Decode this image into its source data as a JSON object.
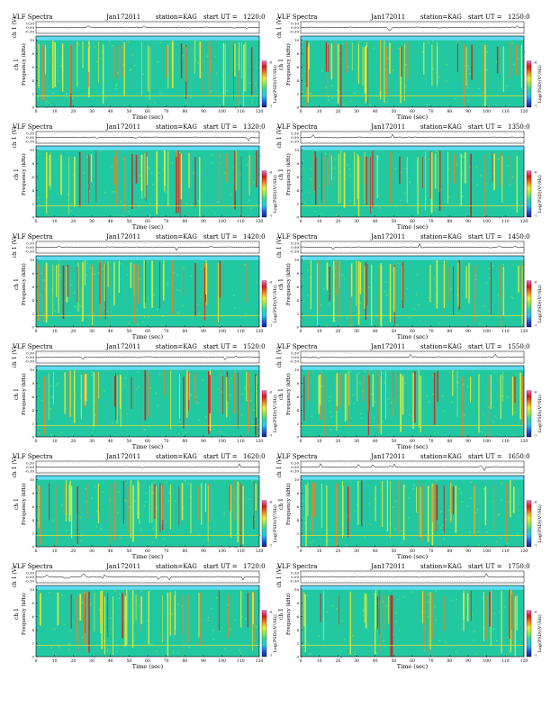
{
  "title_text": "VLF Spectra",
  "date": "Jan172011",
  "station": "station=KAG",
  "start_prefix": "start  UT =",
  "top_ylabel": "ch 1 (V)",
  "top_yticks": [
    "0.30",
    "0.00",
    "-0.30"
  ],
  "spec_ylabel_1": "ch 1",
  "spec_ylabel_2": "Frequency  (kHz)",
  "spec_yticks": [
    "10",
    "8",
    "6",
    "4",
    "2",
    "0"
  ],
  "xlabel": "Time  (sec)",
  "xticks": [
    "0",
    "10",
    "20",
    "30",
    "40",
    "50",
    "60",
    "70",
    "80",
    "90",
    "100",
    "110",
    "120"
  ],
  "colorbar_label": "Log(PSD)(V²/Hz)",
  "colorbar_ticks": [
    "-6",
    "-7"
  ],
  "colors": {
    "background": "#ffffff",
    "spectrogram_base": "#22c8a0",
    "cyan_band": "#5fdcf0",
    "colormap": [
      "#1a1a8c",
      "#1f5fe0",
      "#28c8f0",
      "#2fd4a0",
      "#8ce850",
      "#f0f030",
      "#f08020",
      "#d81818",
      "#ff6ad0"
    ]
  },
  "chart_data": [
    {
      "type": "heatmap",
      "start_time": "1220:0",
      "column": "left",
      "x_range": [
        0,
        120
      ],
      "y_range_khz": [
        0,
        10
      ],
      "top_trace_range_v": [
        -0.3,
        0.3
      ],
      "xlabel": "Time  (sec)",
      "ylabel": "Frequency  (kHz)"
    },
    {
      "type": "heatmap",
      "start_time": "1250:0",
      "column": "right",
      "x_range": [
        0,
        120
      ],
      "y_range_khz": [
        0,
        10
      ],
      "top_trace_range_v": [
        -0.3,
        0.3
      ],
      "xlabel": "Time  (sec)",
      "ylabel": "Frequency  (kHz)"
    },
    {
      "type": "heatmap",
      "start_time": "1320:0",
      "column": "left",
      "x_range": [
        0,
        120
      ],
      "y_range_khz": [
        0,
        10
      ],
      "top_trace_range_v": [
        -0.3,
        0.3
      ],
      "xlabel": "Time  (sec)",
      "ylabel": "Frequency  (kHz)"
    },
    {
      "type": "heatmap",
      "start_time": "1350:0",
      "column": "right",
      "x_range": [
        0,
        120
      ],
      "y_range_khz": [
        0,
        10
      ],
      "top_trace_range_v": [
        -0.3,
        0.3
      ],
      "xlabel": "Time  (sec)",
      "ylabel": "Frequency  (kHz)"
    },
    {
      "type": "heatmap",
      "start_time": "1420:0",
      "column": "left",
      "x_range": [
        0,
        120
      ],
      "y_range_khz": [
        0,
        10
      ],
      "top_trace_range_v": [
        -0.3,
        0.3
      ],
      "xlabel": "Time  (sec)",
      "ylabel": "Frequency  (kHz)"
    },
    {
      "type": "heatmap",
      "start_time": "1450:0",
      "column": "right",
      "x_range": [
        0,
        120
      ],
      "y_range_khz": [
        0,
        10
      ],
      "top_trace_range_v": [
        -0.3,
        0.3
      ],
      "xlabel": "Time  (sec)",
      "ylabel": "Frequency  (kHz)"
    },
    {
      "type": "heatmap",
      "start_time": "1520:0",
      "column": "left",
      "x_range": [
        0,
        120
      ],
      "y_range_khz": [
        0,
        10
      ],
      "top_trace_range_v": [
        -0.3,
        0.3
      ],
      "xlabel": "Time  (sec)",
      "ylabel": "Frequency  (kHz)"
    },
    {
      "type": "heatmap",
      "start_time": "1550:0",
      "column": "right",
      "x_range": [
        0,
        120
      ],
      "y_range_khz": [
        0,
        10
      ],
      "top_trace_range_v": [
        -0.3,
        0.3
      ],
      "xlabel": "Time  (sec)",
      "ylabel": "Frequency  (kHz)"
    },
    {
      "type": "heatmap",
      "start_time": "1620:0",
      "column": "left",
      "x_range": [
        0,
        120
      ],
      "y_range_khz": [
        0,
        10
      ],
      "top_trace_range_v": [
        -0.3,
        0.3
      ],
      "xlabel": "Time  (sec)",
      "ylabel": "Frequency  (kHz)"
    },
    {
      "type": "heatmap",
      "start_time": "1650:0",
      "column": "right",
      "x_range": [
        0,
        120
      ],
      "y_range_khz": [
        0,
        10
      ],
      "top_trace_range_v": [
        -0.3,
        0.3
      ],
      "xlabel": "Time  (sec)",
      "ylabel": "Frequency  (kHz)"
    },
    {
      "type": "heatmap",
      "start_time": "1720:0",
      "column": "left",
      "x_range": [
        0,
        120
      ],
      "y_range_khz": [
        0,
        10
      ],
      "top_trace_range_v": [
        -0.3,
        0.3
      ],
      "xlabel": "Time  (sec)",
      "ylabel": "Frequency  (kHz)"
    },
    {
      "type": "heatmap",
      "start_time": "1750:0",
      "column": "right",
      "x_range": [
        0,
        120
      ],
      "y_range_khz": [
        0,
        10
      ],
      "top_trace_range_v": [
        -0.3,
        0.3
      ],
      "xlabel": "Time  (sec)",
      "ylabel": "Frequency  (kHz)"
    }
  ]
}
